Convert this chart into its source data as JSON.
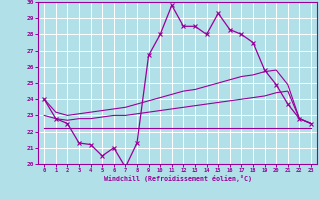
{
  "xlabel": "Windchill (Refroidissement éolien,°C)",
  "background_color": "#b2e0e8",
  "grid_color": "#ffffff",
  "line_color": "#990099",
  "x": [
    0,
    1,
    2,
    3,
    4,
    5,
    6,
    7,
    8,
    9,
    10,
    11,
    12,
    13,
    14,
    15,
    16,
    17,
    18,
    19,
    20,
    21,
    22,
    23
  ],
  "y_windchill": [
    24.0,
    22.8,
    22.5,
    21.3,
    21.2,
    20.5,
    21.0,
    19.8,
    21.3,
    26.7,
    28.0,
    29.8,
    28.5,
    28.5,
    28.0,
    29.3,
    28.3,
    28.0,
    27.5,
    25.8,
    24.9,
    23.7,
    22.8,
    22.5
  ],
  "y_line1": [
    24.0,
    23.2,
    23.0,
    23.1,
    23.2,
    23.3,
    23.4,
    23.5,
    23.7,
    23.9,
    24.1,
    24.3,
    24.5,
    24.6,
    24.8,
    25.0,
    25.2,
    25.4,
    25.5,
    25.7,
    25.8,
    24.9,
    22.8,
    22.5
  ],
  "y_line2": [
    23.0,
    22.8,
    22.7,
    22.8,
    22.8,
    22.9,
    23.0,
    23.0,
    23.1,
    23.2,
    23.3,
    23.4,
    23.5,
    23.6,
    23.7,
    23.8,
    23.9,
    24.0,
    24.1,
    24.2,
    24.4,
    24.5,
    22.8,
    22.5
  ],
  "y_flat": [
    22.2,
    22.2,
    22.2,
    22.2,
    22.2,
    22.2,
    22.2,
    22.2,
    22.2,
    22.2,
    22.2,
    22.2,
    22.2,
    22.2,
    22.2,
    22.2,
    22.2,
    22.2,
    22.2,
    22.2,
    22.2,
    22.2,
    22.2,
    22.2
  ],
  "ylim": [
    20,
    30
  ],
  "xlim": [
    -0.5,
    23.5
  ],
  "yticks": [
    20,
    21,
    22,
    23,
    24,
    25,
    26,
    27,
    28,
    29,
    30
  ],
  "xticks": [
    0,
    1,
    2,
    3,
    4,
    5,
    6,
    7,
    8,
    9,
    10,
    11,
    12,
    13,
    14,
    15,
    16,
    17,
    18,
    19,
    20,
    21,
    22,
    23
  ]
}
